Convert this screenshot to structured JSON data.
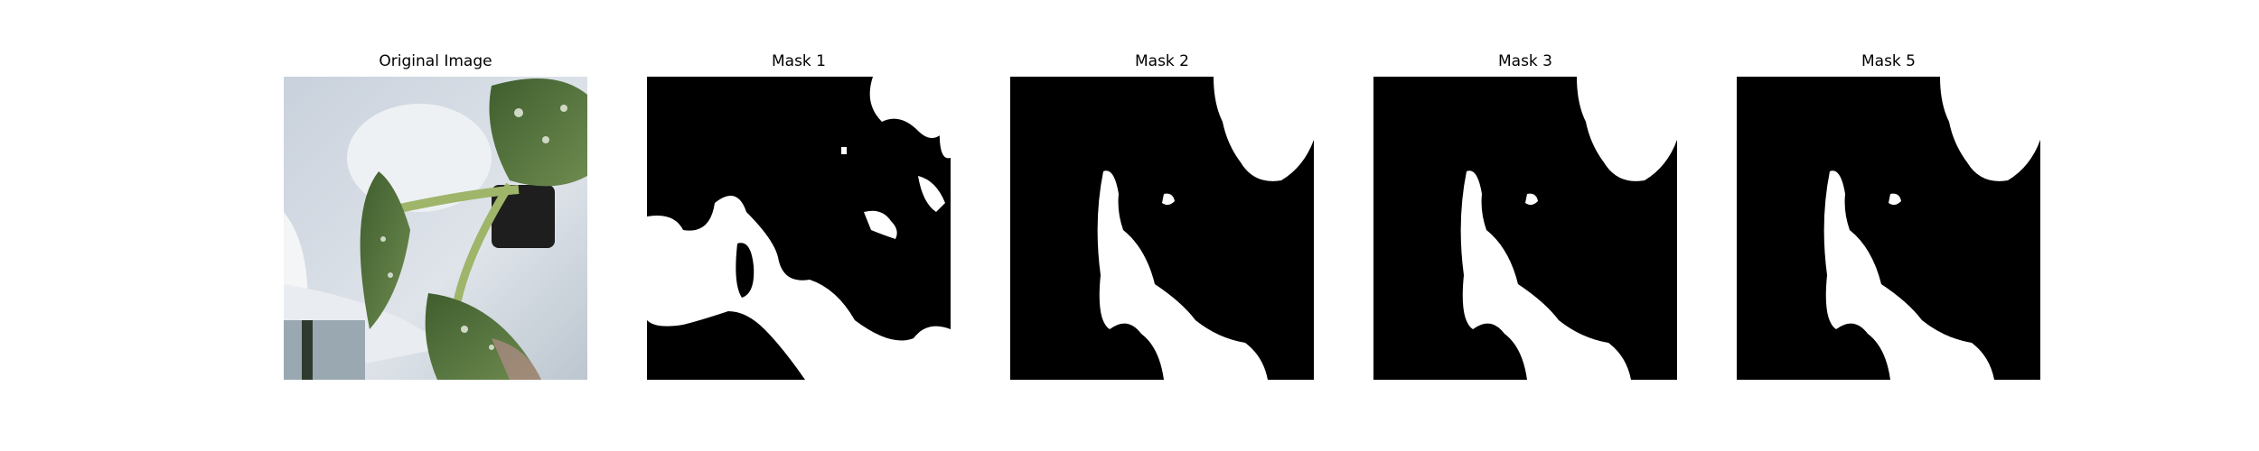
{
  "figure": {
    "panels": [
      {
        "title": "Original Image"
      },
      {
        "title": "Mask 1"
      },
      {
        "title": "Mask 2"
      },
      {
        "title": "Mask 3"
      },
      {
        "title": "Mask 5"
      }
    ]
  }
}
